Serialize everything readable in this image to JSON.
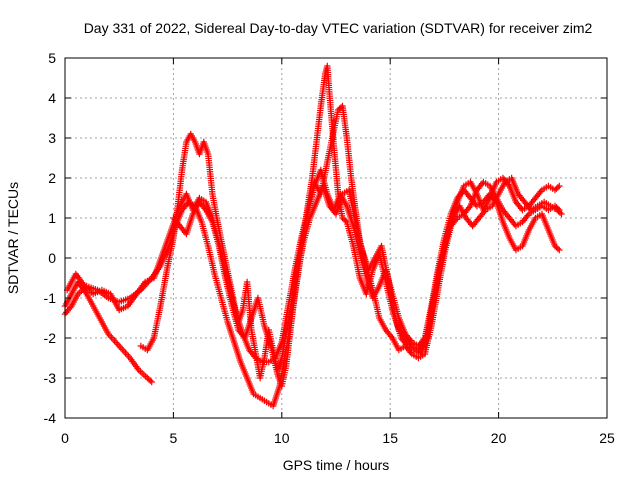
{
  "chart_data": {
    "type": "scatter",
    "title": "Day 331 of 2022, Sidereal Day-to-day VTEC variation (SDTVAR) for receiver zim2",
    "xlabel": "GPS time / hours",
    "ylabel": "SDTVAR / TECUs",
    "xlim": [
      0,
      25
    ],
    "ylim": [
      -4,
      5
    ],
    "xticks": [
      0,
      5,
      10,
      15,
      20,
      25
    ],
    "yticks": [
      -4,
      -3,
      -2,
      -1,
      0,
      1,
      2,
      3,
      4,
      5
    ],
    "grid": true,
    "marker": "plus",
    "color": "#ff0000",
    "series": [
      {
        "points": [
          [
            0.0,
            -1.4
          ],
          [
            0.3,
            -1.2
          ],
          [
            0.6,
            -0.9
          ],
          [
            1.0,
            -0.7
          ],
          [
            1.5,
            -0.8
          ],
          [
            2.0,
            -1.0
          ],
          [
            2.5,
            -1.1
          ],
          [
            3.0,
            -1.0
          ],
          [
            3.5,
            -0.8
          ],
          [
            4.0,
            -0.5
          ],
          [
            4.4,
            -0.2
          ],
          [
            4.8,
            0.3
          ],
          [
            5.1,
            0.8
          ],
          [
            5.4,
            1.2
          ],
          [
            5.7,
            1.4
          ],
          [
            6.0,
            1.3
          ],
          [
            6.3,
            0.9
          ],
          [
            6.6,
            0.3
          ],
          [
            6.9,
            -0.4
          ],
          [
            7.2,
            -1.0
          ],
          [
            7.5,
            -1.6
          ],
          [
            7.8,
            -2.1
          ],
          [
            8.1,
            -2.6
          ],
          [
            8.4,
            -3.0
          ],
          [
            8.7,
            -3.4
          ],
          [
            9.0,
            -3.5
          ],
          [
            9.3,
            -3.6
          ],
          [
            9.6,
            -3.7
          ],
          [
            9.9,
            -3.2
          ],
          [
            10.2,
            -2.3
          ],
          [
            10.5,
            -1.3
          ],
          [
            10.8,
            -0.2
          ],
          [
            11.0,
            0.6
          ],
          [
            11.2,
            1.3
          ],
          [
            11.4,
            2.0
          ],
          [
            11.6,
            2.9
          ],
          [
            11.8,
            3.8
          ],
          [
            12.0,
            4.6
          ],
          [
            12.1,
            4.8
          ],
          [
            12.2,
            4.1
          ],
          [
            12.4,
            2.8
          ],
          [
            12.6,
            1.6
          ],
          [
            12.8,
            1.0
          ],
          [
            13.0,
            0.9
          ],
          [
            13.3,
            0.3
          ],
          [
            13.6,
            -0.5
          ],
          [
            13.9,
            -0.9
          ],
          [
            14.2,
            -0.3
          ],
          [
            14.5,
            0.1
          ],
          [
            14.8,
            -0.6
          ],
          [
            15.1,
            -1.3
          ],
          [
            15.4,
            -1.8
          ],
          [
            15.7,
            -2.0
          ],
          [
            16.0,
            -2.2
          ],
          [
            16.3,
            -2.3
          ],
          [
            16.6,
            -2.1
          ],
          [
            16.9,
            -1.3
          ],
          [
            17.2,
            -0.4
          ],
          [
            17.5,
            0.3
          ],
          [
            17.8,
            0.9
          ],
          [
            18.1,
            1.4
          ],
          [
            18.4,
            1.8
          ],
          [
            18.7,
            1.9
          ],
          [
            19.0,
            1.6
          ],
          [
            19.3,
            1.2
          ],
          [
            19.6,
            1.5
          ],
          [
            19.9,
            1.9
          ],
          [
            20.2,
            2.0
          ],
          [
            20.5,
            1.8
          ],
          [
            20.8,
            1.4
          ],
          [
            21.1,
            1.2
          ],
          [
            21.4,
            1.3
          ],
          [
            21.7,
            1.5
          ],
          [
            22.0,
            1.7
          ],
          [
            22.3,
            1.8
          ],
          [
            22.6,
            1.7
          ],
          [
            22.8,
            1.8
          ]
        ]
      },
      {
        "points": [
          [
            0.0,
            -1.2
          ],
          [
            0.3,
            -0.9
          ],
          [
            0.6,
            -0.6
          ],
          [
            1.0,
            -0.9
          ],
          [
            1.5,
            -1.4
          ],
          [
            2.0,
            -1.9
          ],
          [
            2.5,
            -2.2
          ],
          [
            3.0,
            -2.5
          ],
          [
            3.4,
            -2.8
          ],
          [
            3.8,
            -3.0
          ],
          [
            4.0,
            -3.1
          ]
        ]
      },
      {
        "points": [
          [
            3.5,
            -2.2
          ],
          [
            3.8,
            -2.3
          ],
          [
            4.1,
            -2.0
          ],
          [
            4.4,
            -1.2
          ],
          [
            4.7,
            -0.3
          ],
          [
            5.0,
            0.5
          ],
          [
            5.2,
            1.3
          ],
          [
            5.4,
            2.2
          ],
          [
            5.6,
            2.9
          ],
          [
            5.8,
            3.1
          ],
          [
            6.0,
            2.9
          ],
          [
            6.2,
            2.6
          ],
          [
            6.4,
            2.9
          ],
          [
            6.6,
            2.6
          ],
          [
            6.8,
            1.6
          ],
          [
            7.0,
            1.0
          ],
          [
            7.3,
            0.2
          ],
          [
            7.6,
            -0.6
          ],
          [
            7.9,
            -1.4
          ],
          [
            8.2,
            -1.9
          ],
          [
            8.5,
            -2.3
          ],
          [
            8.8,
            -2.5
          ],
          [
            9.1,
            -2.6
          ],
          [
            9.4,
            -2.6
          ],
          [
            9.7,
            -2.5
          ],
          [
            10.0,
            -2.1
          ],
          [
            10.3,
            -1.2
          ],
          [
            10.6,
            -0.3
          ],
          [
            10.9,
            0.5
          ],
          [
            11.2,
            1.2
          ],
          [
            11.5,
            1.9
          ],
          [
            11.8,
            1.6
          ],
          [
            12.1,
            2.4
          ],
          [
            12.4,
            3.2
          ],
          [
            12.6,
            3.7
          ],
          [
            12.8,
            3.8
          ],
          [
            13.0,
            3.0
          ],
          [
            13.2,
            2.0
          ],
          [
            13.4,
            1.2
          ],
          [
            13.6,
            0.4
          ],
          [
            13.9,
            -0.2
          ],
          [
            14.2,
            -0.8
          ],
          [
            14.5,
            -1.5
          ],
          [
            14.8,
            -1.8
          ],
          [
            15.1,
            -2.0
          ],
          [
            15.4,
            -2.3
          ],
          [
            15.7,
            -2.2
          ],
          [
            16.0,
            -2.4
          ],
          [
            16.3,
            -2.5
          ],
          [
            16.6,
            -2.4
          ],
          [
            16.9,
            -1.7
          ],
          [
            17.2,
            -0.8
          ],
          [
            17.5,
            0.1
          ],
          [
            17.8,
            0.8
          ],
          [
            18.1,
            1.0
          ],
          [
            18.4,
            1.1
          ],
          [
            18.7,
            1.3
          ],
          [
            19.0,
            1.7
          ],
          [
            19.3,
            1.9
          ],
          [
            19.6,
            1.8
          ],
          [
            19.9,
            1.5
          ],
          [
            20.2,
            1.2
          ],
          [
            20.5,
            1.0
          ],
          [
            20.8,
            0.8
          ],
          [
            21.1,
            0.9
          ],
          [
            21.4,
            1.1
          ],
          [
            21.7,
            1.2
          ],
          [
            22.0,
            1.3
          ],
          [
            22.3,
            1.2
          ],
          [
            22.6,
            1.3
          ],
          [
            22.8,
            1.2
          ]
        ]
      },
      {
        "points": [
          [
            0.1,
            -0.8
          ],
          [
            0.5,
            -0.4
          ],
          [
            0.9,
            -0.7
          ],
          [
            1.3,
            -0.9
          ],
          [
            1.7,
            -0.8
          ],
          [
            2.1,
            -0.9
          ],
          [
            2.5,
            -1.3
          ],
          [
            2.9,
            -1.2
          ],
          [
            3.3,
            -0.9
          ],
          [
            3.7,
            -0.6
          ],
          [
            4.1,
            -0.5
          ],
          [
            4.5,
            0.1
          ],
          [
            4.9,
            0.7
          ],
          [
            5.3,
            1.3
          ],
          [
            5.6,
            1.6
          ],
          [
            5.9,
            1.2
          ],
          [
            6.2,
            1.5
          ],
          [
            6.5,
            1.4
          ],
          [
            6.8,
            1.0
          ],
          [
            7.1,
            0.4
          ],
          [
            7.4,
            -0.3
          ],
          [
            7.7,
            -1.0
          ],
          [
            8.0,
            -1.6
          ],
          [
            8.2,
            -1.3
          ],
          [
            8.4,
            -0.6
          ],
          [
            8.6,
            -1.8
          ],
          [
            8.8,
            -2.4
          ],
          [
            9.0,
            -3.0
          ],
          [
            9.2,
            -2.5
          ],
          [
            9.4,
            -1.8
          ],
          [
            9.6,
            -2.3
          ],
          [
            9.8,
            -2.8
          ],
          [
            10.0,
            -2.5
          ],
          [
            10.3,
            -1.6
          ],
          [
            10.6,
            -0.6
          ],
          [
            10.9,
            0.4
          ],
          [
            11.2,
            1.1
          ],
          [
            11.5,
            1.8
          ],
          [
            11.8,
            2.2
          ],
          [
            12.1,
            1.6
          ],
          [
            12.4,
            1.2
          ],
          [
            12.7,
            1.6
          ],
          [
            13.0,
            1.3
          ],
          [
            13.3,
            0.8
          ],
          [
            13.6,
            0.1
          ],
          [
            13.9,
            -0.5
          ],
          [
            14.2,
            -1.0
          ],
          [
            14.5,
            -0.7
          ],
          [
            14.8,
            -0.3
          ],
          [
            15.1,
            -0.9
          ],
          [
            15.4,
            -1.5
          ],
          [
            15.7,
            -1.9
          ],
          [
            16.0,
            -2.1
          ],
          [
            16.3,
            -2.2
          ],
          [
            16.6,
            -2.0
          ],
          [
            16.9,
            -1.2
          ],
          [
            17.2,
            -0.3
          ],
          [
            17.5,
            0.5
          ],
          [
            17.8,
            1.1
          ],
          [
            18.1,
            1.5
          ],
          [
            18.4,
            1.7
          ],
          [
            18.7,
            1.5
          ],
          [
            19.0,
            1.3
          ],
          [
            19.3,
            1.4
          ],
          [
            19.6,
            1.6
          ],
          [
            19.9,
            1.4
          ],
          [
            20.2,
            0.9
          ],
          [
            20.5,
            0.5
          ],
          [
            20.8,
            0.2
          ],
          [
            21.1,
            0.3
          ],
          [
            21.4,
            0.7
          ],
          [
            21.7,
            1.0
          ],
          [
            22.0,
            1.1
          ],
          [
            22.3,
            0.7
          ],
          [
            22.6,
            0.3
          ],
          [
            22.8,
            0.2
          ]
        ]
      },
      {
        "points": [
          [
            5.0,
            1.0
          ],
          [
            5.3,
            0.8
          ],
          [
            5.6,
            0.6
          ],
          [
            5.9,
            1.1
          ],
          [
            6.2,
            1.4
          ],
          [
            6.5,
            1.2
          ],
          [
            6.8,
            0.9
          ],
          [
            7.1,
            0.3
          ],
          [
            7.4,
            -0.5
          ],
          [
            7.7,
            -1.2
          ],
          [
            8.0,
            -1.8
          ],
          [
            8.3,
            -2.0
          ],
          [
            8.6,
            -1.5
          ],
          [
            8.9,
            -1.0
          ],
          [
            9.2,
            -1.7
          ],
          [
            9.5,
            -2.2
          ],
          [
            9.8,
            -2.9
          ],
          [
            10.0,
            -3.2
          ],
          [
            10.2,
            -2.7
          ],
          [
            10.4,
            -1.8
          ],
          [
            10.6,
            -0.9
          ],
          [
            10.8,
            -0.2
          ],
          [
            11.0,
            0.4
          ],
          [
            11.3,
            1.0
          ],
          [
            11.6,
            1.4
          ],
          [
            11.9,
            1.8
          ],
          [
            12.2,
            1.3
          ],
          [
            12.5,
            1.1
          ],
          [
            12.8,
            1.6
          ],
          [
            13.1,
            1.7
          ],
          [
            13.4,
            0.9
          ],
          [
            13.7,
            0.2
          ],
          [
            14.0,
            -0.3
          ],
          [
            14.3,
            0.0
          ],
          [
            14.6,
            0.3
          ],
          [
            14.9,
            -0.5
          ],
          [
            15.2,
            -1.4
          ],
          [
            15.5,
            -2.0
          ],
          [
            15.8,
            -2.2
          ],
          [
            16.1,
            -2.3
          ],
          [
            16.4,
            -2.4
          ],
          [
            16.7,
            -2.0
          ],
          [
            17.0,
            -1.0
          ],
          [
            17.3,
            -0.2
          ],
          [
            17.6,
            0.5
          ],
          [
            17.9,
            1.0
          ],
          [
            18.2,
            1.3
          ],
          [
            18.5,
            1.0
          ],
          [
            18.8,
            0.8
          ],
          [
            19.1,
            1.0
          ],
          [
            19.4,
            1.2
          ],
          [
            19.7,
            1.3
          ],
          [
            20.0,
            1.6
          ],
          [
            20.3,
            1.9
          ],
          [
            20.6,
            2.0
          ],
          [
            20.9,
            1.6
          ],
          [
            21.2,
            1.4
          ],
          [
            21.5,
            1.2
          ],
          [
            21.8,
            1.3
          ],
          [
            22.1,
            1.4
          ],
          [
            22.4,
            1.3
          ],
          [
            22.7,
            1.2
          ],
          [
            22.9,
            1.1
          ]
        ]
      }
    ]
  }
}
